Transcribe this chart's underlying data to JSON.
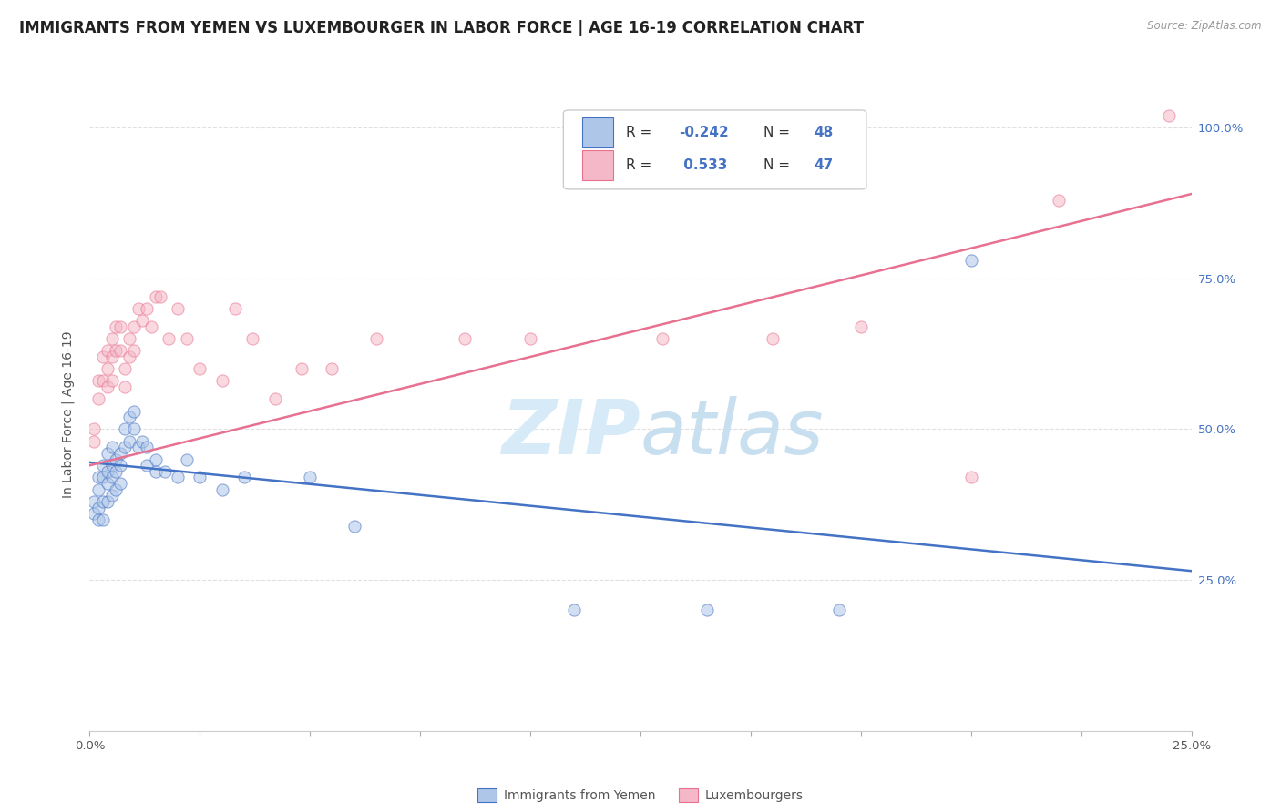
{
  "title": "IMMIGRANTS FROM YEMEN VS LUXEMBOURGER IN LABOR FORCE | AGE 16-19 CORRELATION CHART",
  "source_text": "Source: ZipAtlas.com",
  "ylabel": "In Labor Force | Age 16-19",
  "x_min": 0.0,
  "x_max": 0.25,
  "y_min": 0.0,
  "y_max": 1.05,
  "x_ticks": [
    0.0,
    0.025,
    0.05,
    0.075,
    0.1,
    0.125,
    0.15,
    0.175,
    0.2,
    0.225,
    0.25
  ],
  "y_ticks": [
    0.0,
    0.25,
    0.5,
    0.75,
    1.0
  ],
  "y_tick_labels_right": [
    "",
    "25.0%",
    "50.0%",
    "75.0%",
    "100.0%"
  ],
  "color_blue": "#aec6e8",
  "color_pink": "#f5b8c8",
  "line_color_blue": "#4472c4",
  "line_color_pink": "#e87090",
  "watermark_zip": "ZIP",
  "watermark_atlas": "atlas",
  "watermark_color": "#d6eaf8",
  "legend_label_blue": "Immigrants from Yemen",
  "legend_label_pink": "Luxembourgers",
  "blue_scatter_x": [
    0.001,
    0.001,
    0.002,
    0.002,
    0.002,
    0.002,
    0.003,
    0.003,
    0.003,
    0.003,
    0.004,
    0.004,
    0.004,
    0.004,
    0.005,
    0.005,
    0.005,
    0.005,
    0.006,
    0.006,
    0.006,
    0.007,
    0.007,
    0.007,
    0.008,
    0.008,
    0.009,
    0.009,
    0.01,
    0.01,
    0.011,
    0.012,
    0.013,
    0.013,
    0.015,
    0.015,
    0.017,
    0.02,
    0.022,
    0.025,
    0.03,
    0.035,
    0.05,
    0.06,
    0.11,
    0.14,
    0.17,
    0.2
  ],
  "blue_scatter_y": [
    0.38,
    0.36,
    0.42,
    0.4,
    0.37,
    0.35,
    0.44,
    0.42,
    0.38,
    0.35,
    0.46,
    0.43,
    0.41,
    0.38,
    0.47,
    0.44,
    0.42,
    0.39,
    0.45,
    0.43,
    0.4,
    0.46,
    0.44,
    0.41,
    0.5,
    0.47,
    0.52,
    0.48,
    0.53,
    0.5,
    0.47,
    0.48,
    0.47,
    0.44,
    0.45,
    0.43,
    0.43,
    0.42,
    0.45,
    0.42,
    0.4,
    0.42,
    0.42,
    0.34,
    0.2,
    0.2,
    0.2,
    0.78
  ],
  "pink_scatter_x": [
    0.001,
    0.001,
    0.002,
    0.002,
    0.003,
    0.003,
    0.004,
    0.004,
    0.004,
    0.005,
    0.005,
    0.005,
    0.006,
    0.006,
    0.007,
    0.007,
    0.008,
    0.008,
    0.009,
    0.009,
    0.01,
    0.01,
    0.011,
    0.012,
    0.013,
    0.014,
    0.015,
    0.016,
    0.018,
    0.02,
    0.022,
    0.025,
    0.03,
    0.033,
    0.037,
    0.042,
    0.048,
    0.055,
    0.065,
    0.085,
    0.1,
    0.13,
    0.155,
    0.175,
    0.2,
    0.22,
    0.245
  ],
  "pink_scatter_y": [
    0.5,
    0.48,
    0.58,
    0.55,
    0.62,
    0.58,
    0.63,
    0.6,
    0.57,
    0.65,
    0.62,
    0.58,
    0.67,
    0.63,
    0.67,
    0.63,
    0.6,
    0.57,
    0.65,
    0.62,
    0.67,
    0.63,
    0.7,
    0.68,
    0.7,
    0.67,
    0.72,
    0.72,
    0.65,
    0.7,
    0.65,
    0.6,
    0.58,
    0.7,
    0.65,
    0.55,
    0.6,
    0.6,
    0.65,
    0.65,
    0.65,
    0.65,
    0.65,
    0.67,
    0.42,
    0.88,
    1.02
  ],
  "blue_trend_x": [
    0.0,
    0.25
  ],
  "blue_trend_y": [
    0.445,
    0.265
  ],
  "pink_trend_x": [
    0.0,
    0.25
  ],
  "pink_trend_y": [
    0.44,
    0.89
  ],
  "grid_color": "#e0e0e0",
  "bg_color": "#ffffff",
  "title_fontsize": 12,
  "axis_label_fontsize": 10,
  "tick_fontsize": 9.5,
  "scatter_size": 90,
  "scatter_alpha": 0.55,
  "scatter_linewidth": 0.8
}
